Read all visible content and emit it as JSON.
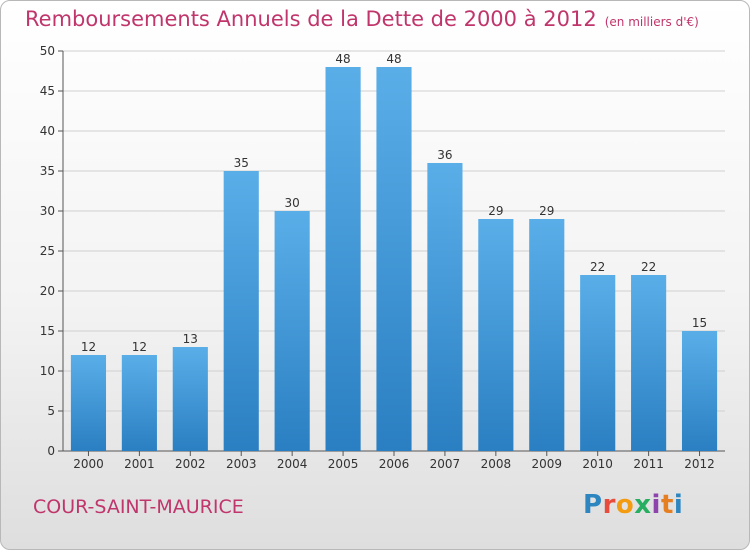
{
  "title": "Remboursements Annuels de la Dette de 2000 à 2012",
  "unit_note": "(en milliers d'€)",
  "commune": "COUR-SAINT-MAURICE",
  "logo": {
    "text": "Proxiti",
    "letters": [
      {
        "ch": "P",
        "color": "#2e86c1"
      },
      {
        "ch": "r",
        "color": "#e74c3c"
      },
      {
        "ch": "o",
        "color": "#f39c12"
      },
      {
        "ch": "x",
        "color": "#27ae60"
      },
      {
        "ch": "i",
        "color": "#8e44ad"
      },
      {
        "ch": "t",
        "color": "#e67e22"
      },
      {
        "ch": "i",
        "color": "#2e86c1"
      }
    ]
  },
  "colors": {
    "title": "#c0356b",
    "bar_top": "#5aaee8",
    "bar_bottom": "#2a7fc2",
    "grid": "#d0d0d0",
    "axis": "#555555"
  },
  "chart_data": {
    "type": "bar",
    "categories": [
      "2000",
      "2001",
      "2002",
      "2003",
      "2004",
      "2005",
      "2006",
      "2007",
      "2008",
      "2009",
      "2010",
      "2011",
      "2012"
    ],
    "values": [
      12,
      12,
      13,
      35,
      30,
      48,
      48,
      36,
      29,
      29,
      22,
      22,
      15
    ],
    "ylim": [
      0,
      50
    ],
    "yticks": [
      0,
      5,
      10,
      15,
      20,
      25,
      30,
      35,
      40,
      45,
      50
    ],
    "grid": true,
    "legend": "none"
  }
}
